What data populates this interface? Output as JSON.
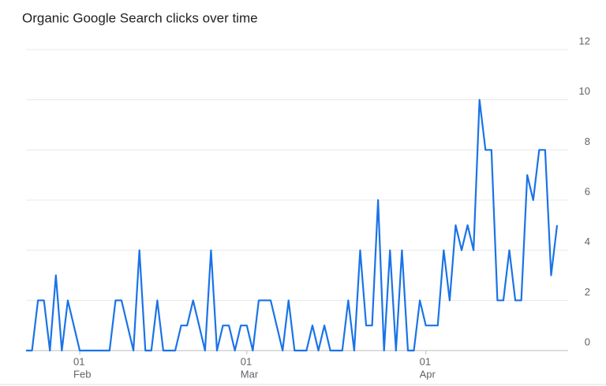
{
  "chart_data": {
    "type": "line",
    "title": "Organic Google Search clicks over time",
    "categories": [
      null,
      null,
      null,
      null,
      null,
      null,
      null,
      null,
      null,
      {
        "day": "01",
        "month": "Feb"
      },
      null,
      null,
      null,
      null,
      null,
      null,
      null,
      null,
      null,
      null,
      null,
      null,
      null,
      null,
      null,
      null,
      null,
      null,
      null,
      null,
      null,
      null,
      null,
      null,
      null,
      null,
      null,
      {
        "day": "01",
        "month": "Mar"
      },
      null,
      null,
      null,
      null,
      null,
      null,
      null,
      null,
      null,
      null,
      null,
      null,
      null,
      null,
      null,
      null,
      null,
      null,
      null,
      null,
      null,
      null,
      null,
      null,
      null,
      null,
      null,
      null,
      null,
      {
        "day": "01",
        "month": "Apr"
      },
      null,
      null,
      null,
      null,
      null,
      null,
      null,
      null,
      null,
      null,
      null,
      null,
      null,
      null,
      null,
      null,
      null,
      null,
      null,
      null,
      null,
      null
    ],
    "series": [
      {
        "color": "#1a73e8",
        "values": [
          0,
          0,
          2,
          2,
          0,
          3,
          0,
          2,
          1,
          0,
          0,
          0,
          0,
          0,
          0,
          2,
          2,
          1,
          0,
          4,
          0,
          0,
          2,
          0,
          0,
          0,
          1,
          1,
          2,
          1,
          0,
          4,
          0,
          1,
          1,
          0,
          1,
          1,
          0,
          2,
          2,
          2,
          1,
          0,
          2,
          0,
          0,
          0,
          1,
          0,
          1,
          0,
          0,
          0,
          2,
          0,
          4,
          1,
          1,
          6,
          0,
          4,
          0,
          4,
          0,
          0,
          2,
          1,
          1,
          1,
          4,
          2,
          5,
          4,
          5,
          4,
          10,
          8,
          8,
          2,
          2,
          4,
          2,
          2,
          7,
          6,
          8,
          8,
          3,
          5
        ]
      }
    ],
    "ylim": [
      0,
      12
    ],
    "yticks": [
      0,
      2,
      4,
      6,
      8,
      10,
      12
    ],
    "grid": true
  }
}
